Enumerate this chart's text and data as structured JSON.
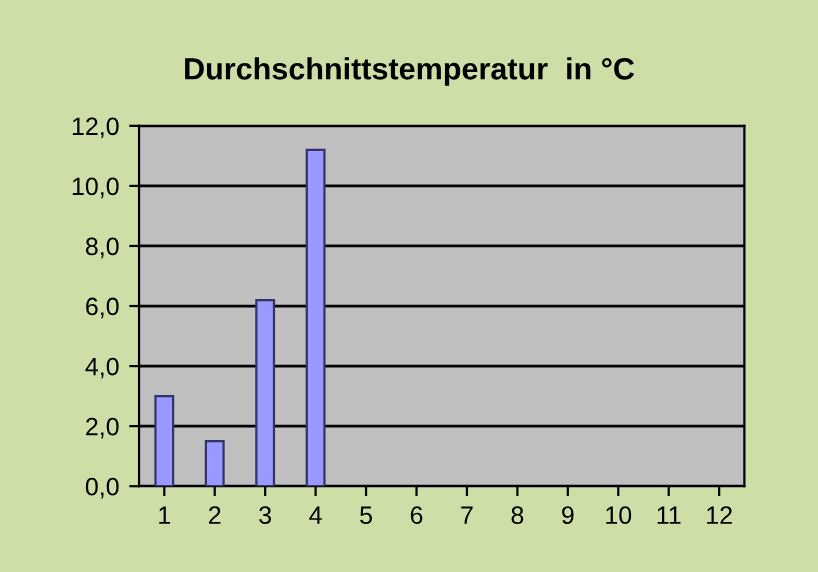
{
  "chart_data": {
    "type": "bar",
    "title": "Durchschnittstemperatur  in °C",
    "categories": [
      "1",
      "2",
      "3",
      "4",
      "5",
      "6",
      "7",
      "8",
      "9",
      "10",
      "11",
      "12"
    ],
    "values": [
      3.0,
      1.5,
      6.2,
      11.2,
      null,
      null,
      null,
      null,
      null,
      null,
      null,
      null
    ],
    "color": "#9999ff",
    "ylim": [
      0,
      12
    ],
    "yticks": [
      {
        "value": 0,
        "label": "0,0"
      },
      {
        "value": 2,
        "label": "2,0"
      },
      {
        "value": 4,
        "label": "4,0"
      },
      {
        "value": 6,
        "label": "6,0"
      },
      {
        "value": 8,
        "label": "8,0"
      },
      {
        "value": 10,
        "label": "10,0"
      },
      {
        "value": 12,
        "label": "12,0"
      }
    ],
    "grid": "y",
    "legend": false
  }
}
